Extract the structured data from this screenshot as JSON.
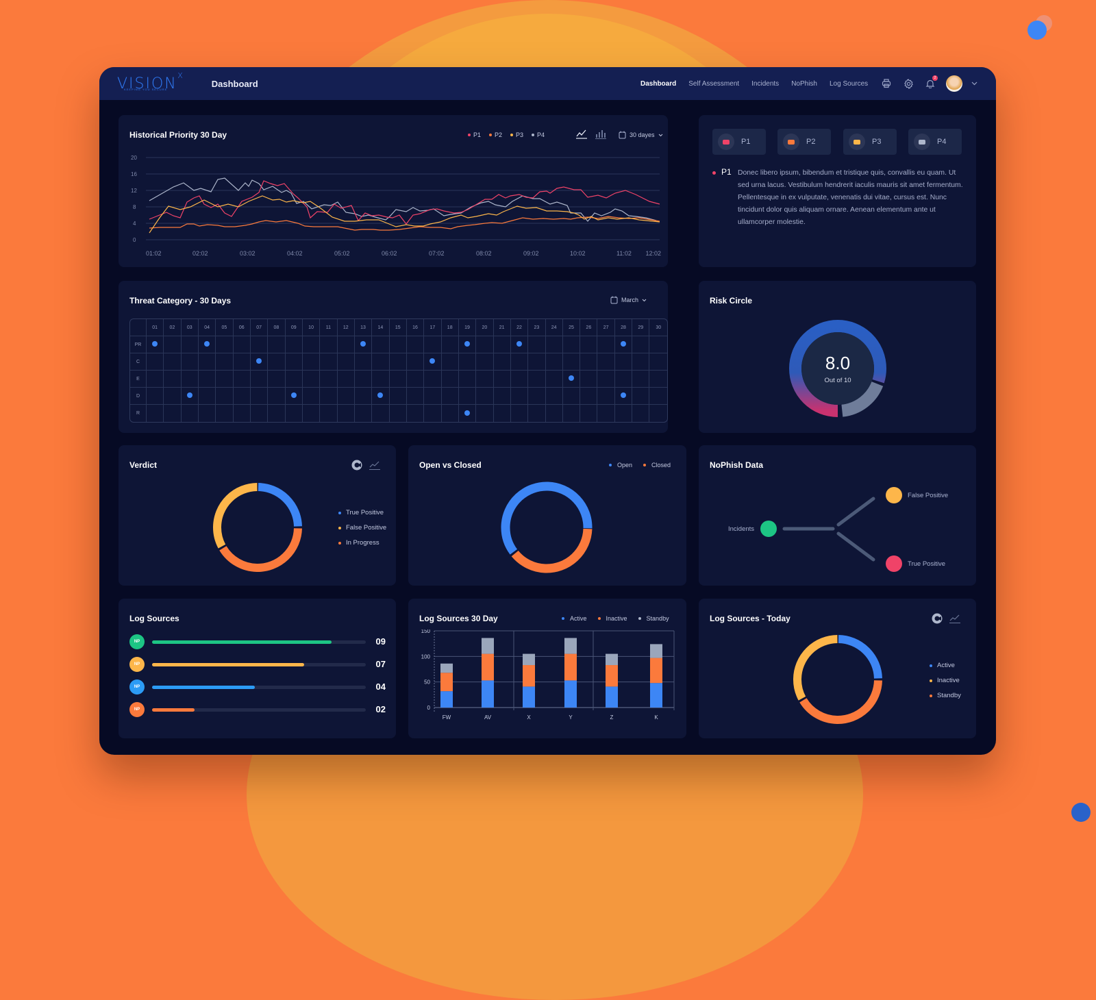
{
  "app": {
    "logo": "VISION",
    "logo_sup": "X",
    "logo_tagline": "KEEPING YOU SECURE",
    "page_title": "Dashboard"
  },
  "nav": {
    "items": [
      {
        "label": "Dashboard",
        "active": true
      },
      {
        "label": "Self Assessment",
        "active": false
      },
      {
        "label": "Incidents",
        "active": false
      },
      {
        "label": "NoPhish",
        "active": false
      },
      {
        "label": "Log Sources",
        "active": false
      }
    ]
  },
  "header_icons": {
    "print": "printer-icon",
    "settings": "gear-icon",
    "notifications": "bell-icon",
    "notification_count": "2"
  },
  "colors": {
    "p1": "#f04368",
    "p2": "#fb7a3c",
    "p3": "#fdb64a",
    "p4": "#aeb7cc",
    "blue": "#3d86f5",
    "green": "#1dc584",
    "panel": "#0e1536"
  },
  "historical": {
    "title": "Historical Priority 30 Day",
    "legend": [
      "P1",
      "P2",
      "P3",
      "P4"
    ],
    "range_label": "30 dayes"
  },
  "priority_panel": {
    "chips": [
      "P1",
      "P2",
      "P3",
      "P4"
    ],
    "selected_label": "P1",
    "description": "Donec libero ipsum, bibendum et tristique quis, convallis eu quam. Ut sed urna lacus. Vestibulum hendrerit iaculis mauris sit amet fermentum. Pellentesque in ex vulputate, venenatis dui vitae, cursus est. Nunc tincidunt dolor quis aliquam ornare. Aenean elementum ante ut ullamcorper molestie."
  },
  "threat": {
    "title": "Threat Category - 30 Days",
    "month": "March",
    "days": [
      "01",
      "02",
      "03",
      "04",
      "05",
      "06",
      "07",
      "08",
      "09",
      "10",
      "11",
      "12",
      "13",
      "14",
      "15",
      "16",
      "17",
      "18",
      "19",
      "20",
      "21",
      "22",
      "23",
      "24",
      "25",
      "26",
      "27",
      "28",
      "29",
      "30"
    ],
    "rows": [
      {
        "label": "PR",
        "hits": [
          1,
          4,
          13,
          19,
          22,
          28
        ]
      },
      {
        "label": "C",
        "hits": [
          7,
          17
        ]
      },
      {
        "label": "E",
        "hits": [
          25
        ]
      },
      {
        "label": "D",
        "hits": [
          3,
          9,
          14,
          28
        ]
      },
      {
        "label": "R",
        "hits": [
          19
        ]
      }
    ]
  },
  "risk": {
    "title": "Risk Circle",
    "score": "8.0",
    "caption": "Out of 10"
  },
  "verdict": {
    "title": "Verdict",
    "legend": [
      "True Positive",
      "False Positive",
      "In Progress"
    ]
  },
  "open_closed": {
    "title": "Open vs Closed",
    "legend": [
      "Open",
      "Closed"
    ]
  },
  "nophish": {
    "title": "NoPhish Data",
    "source": "Incidents",
    "targets": [
      "False Positive",
      "True Positive"
    ]
  },
  "log_sources": {
    "title": "Log Sources",
    "rows": [
      {
        "badge": "NP",
        "value": "09",
        "pct": 84,
        "color": "#1dc584"
      },
      {
        "badge": "NP",
        "value": "07",
        "pct": 71,
        "color": "#fdb64a"
      },
      {
        "badge": "NP",
        "value": "04",
        "pct": 48,
        "color": "#2c9bf5"
      },
      {
        "badge": "NP",
        "value": "02",
        "pct": 20,
        "color": "#fb7a3c"
      }
    ]
  },
  "log30": {
    "title": "Log Sources 30 Day",
    "legend": [
      "Active",
      "Inactive",
      "Standby"
    ]
  },
  "log_today": {
    "title": "Log Sources - Today",
    "legend": [
      "Active",
      "Inactive",
      "Standby"
    ]
  },
  "chart_data": [
    {
      "type": "line",
      "title": "Historical Priority 30 Day",
      "x": [
        "01:02",
        "02:02",
        "03:02",
        "04:02",
        "05:02",
        "06:02",
        "07:02",
        "08:02",
        "09:02",
        "10:02",
        "11:02",
        "12:02"
      ],
      "ylim": [
        0,
        20
      ],
      "yticks": [
        0,
        4,
        8,
        12,
        16,
        20
      ],
      "series": [
        {
          "name": "P1",
          "values": [
            5,
            9,
            8,
            15,
            8,
            6,
            4,
            8,
            14,
            16,
            15,
            11
          ]
        },
        {
          "name": "P2",
          "values": [
            2,
            3,
            3,
            5,
            4,
            3,
            3,
            3,
            5,
            6,
            5,
            4
          ]
        },
        {
          "name": "P3",
          "values": [
            1,
            8,
            10,
            9,
            5,
            4,
            3,
            5,
            7,
            8,
            5,
            5
          ]
        },
        {
          "name": "P4",
          "values": [
            10,
            13,
            13,
            11,
            7,
            5,
            5,
            8,
            13,
            8,
            8,
            5
          ]
        }
      ]
    },
    {
      "type": "heatmap",
      "title": "Threat Category - 30 Days",
      "rows": [
        "PR",
        "C",
        "E",
        "D",
        "R"
      ],
      "columns": "01-30",
      "hits": {
        "PR": [
          1,
          4,
          13,
          19,
          22,
          28
        ],
        "C": [
          7,
          17
        ],
        "E": [
          25
        ],
        "D": [
          3,
          9,
          14,
          28
        ],
        "R": [
          19
        ]
      }
    },
    {
      "type": "pie",
      "title": "Risk Circle",
      "score": 8.0,
      "max": 10,
      "segments": [
        {
          "name": "score",
          "value": 8
        },
        {
          "name": "remaining",
          "value": 2
        }
      ]
    },
    {
      "type": "pie",
      "title": "Verdict",
      "segments": [
        {
          "name": "True Positive",
          "value": 25
        },
        {
          "name": "In Progress",
          "value": 40
        },
        {
          "name": "False Positive",
          "value": 35
        }
      ]
    },
    {
      "type": "pie",
      "title": "Open vs Closed",
      "segments": [
        {
          "name": "Closed",
          "value": 40
        },
        {
          "name": "Open",
          "value": 60
        }
      ]
    },
    {
      "type": "bar",
      "title": "Log Sources 30 Day",
      "categories": [
        "FW",
        "AV",
        "X",
        "Y",
        "Z",
        "K"
      ],
      "stacked": true,
      "ylim": [
        0,
        150
      ],
      "yticks": [
        0,
        50,
        100,
        150
      ],
      "series": [
        {
          "name": "Active",
          "values": [
            32,
            53,
            41,
            53,
            41,
            48
          ]
        },
        {
          "name": "Inactive",
          "values": [
            36,
            52,
            42,
            52,
            42,
            49
          ]
        },
        {
          "name": "Standby",
          "values": [
            18,
            31,
            22,
            31,
            22,
            27
          ]
        }
      ]
    },
    {
      "type": "pie",
      "title": "Log Sources - Today",
      "segments": [
        {
          "name": "Active",
          "value": 25
        },
        {
          "name": "Standby",
          "value": 40
        },
        {
          "name": "Inactive",
          "value": 35
        }
      ]
    }
  ]
}
